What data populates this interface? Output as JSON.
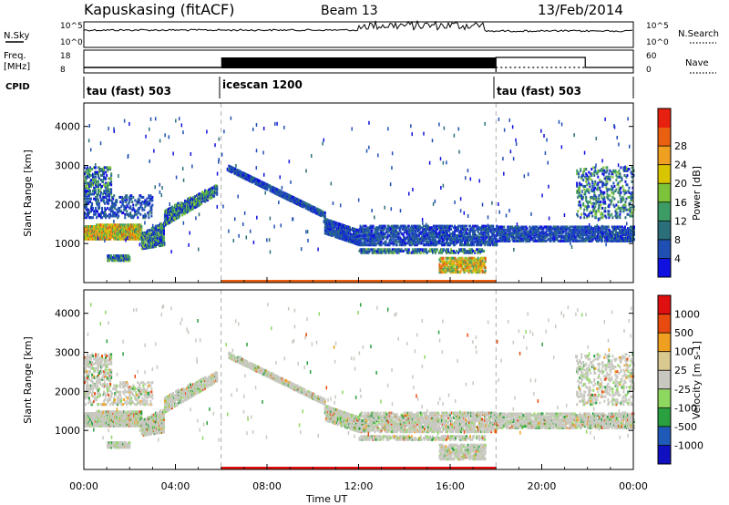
{
  "header": {
    "station": "Kapuskasing (fitACF)",
    "beam": "Beam 13",
    "date": "13/Feb/2014"
  },
  "top_panels": {
    "nsky_label": "N.Sky",
    "nsky_ticks": [
      "10^5",
      "10^0"
    ],
    "nsearch_label": "N.Search",
    "nsearch_ticks": [
      "10^5",
      "10^0"
    ],
    "freq_label": "Freq.",
    "freq_unit": "[MHz]",
    "freq_ticks": [
      "18",
      "8"
    ],
    "nave_label": "Nave",
    "nave_ticks": [
      "60",
      "0"
    ],
    "cpid_label": "CPID"
  },
  "cpid_segments": [
    {
      "name": "tau (fast) 503",
      "start": 0,
      "end": 6
    },
    {
      "name": "icescan 1200",
      "start": 6,
      "end": 18
    },
    {
      "name": "tau (fast) 503",
      "start": 18,
      "end": 24
    }
  ],
  "x_axis": {
    "label": "Time UT",
    "ticks": [
      "00:00",
      "04:00",
      "08:00",
      "12:00",
      "16:00",
      "20:00",
      "00:00"
    ]
  },
  "colors": {
    "power": [
      "#1010e0",
      "#1f4fb3",
      "#2a6f7a",
      "#3d9b66",
      "#7dc33a",
      "#d9c400",
      "#f0a020",
      "#e86010",
      "#e82010"
    ],
    "velocity": [
      "#e01010",
      "#e84a10",
      "#f0a020",
      "#d9c890",
      "#c8c8c0",
      "#8fd860",
      "#2aa040",
      "#1f5ab8",
      "#1010c0"
    ],
    "ground": "#777777"
  },
  "chart_data": [
    {
      "type": "heatmap",
      "panel": "power",
      "ylabel": "Slant Range [km]",
      "yticks": [
        "1000",
        "2000",
        "3000",
        "4000"
      ],
      "ylim": [
        0,
        4600
      ],
      "xlim": [
        0,
        24
      ],
      "colorbar": {
        "label": "Power [dB]",
        "ticks": [
          "4",
          "8",
          "12",
          "16",
          "20",
          "24",
          "28"
        ],
        "range": [
          0,
          32
        ]
      },
      "features": [
        {
          "t0": 0.0,
          "t1": 3.5,
          "r0": 1100,
          "r1": 1500,
          "level": "high"
        },
        {
          "t0": 3.5,
          "t1": 5.8,
          "r0": 1600,
          "r1": 2500,
          "level": "medium"
        },
        {
          "t0": 6.3,
          "t1": 11.0,
          "r0": 2900,
          "r1": 1400,
          "level": "low"
        },
        {
          "t0": 11.0,
          "t1": 18.0,
          "r0": 1000,
          "r1": 1500,
          "level": "low"
        },
        {
          "t0": 18.0,
          "t1": 24.0,
          "r0": 1100,
          "r1": 1500,
          "level": "low"
        },
        {
          "t0": 15.5,
          "t1": 17.5,
          "r0": 300,
          "r1": 800,
          "level": "high"
        }
      ]
    },
    {
      "type": "heatmap",
      "panel": "velocity",
      "ylabel": "Slant Range [km]",
      "yticks": [
        "1000",
        "2000",
        "3000",
        "4000"
      ],
      "ylim": [
        0,
        4600
      ],
      "xlim": [
        0,
        24
      ],
      "colorbar": {
        "label": "Velocity [m s-1]",
        "ticks": [
          "1000",
          "500",
          "100",
          "25",
          "-25",
          "-100",
          "-500",
          "-1000"
        ]
      },
      "features": [
        {
          "t0": 0.0,
          "t1": 3.5,
          "r0": 1100,
          "r1": 1500,
          "level": "near-zero"
        },
        {
          "t0": 3.5,
          "t1": 5.8,
          "r0": 1600,
          "r1": 2500,
          "level": "near-zero"
        },
        {
          "t0": 6.3,
          "t1": 11.0,
          "r0": 2900,
          "r1": 1400,
          "level": "near-zero"
        },
        {
          "t0": 11.0,
          "t1": 18.0,
          "r0": 700,
          "r1": 1500,
          "level": "near-zero"
        },
        {
          "t0": 18.0,
          "t1": 24.0,
          "r0": 1100,
          "r1": 1500,
          "level": "near-zero"
        }
      ]
    }
  ]
}
